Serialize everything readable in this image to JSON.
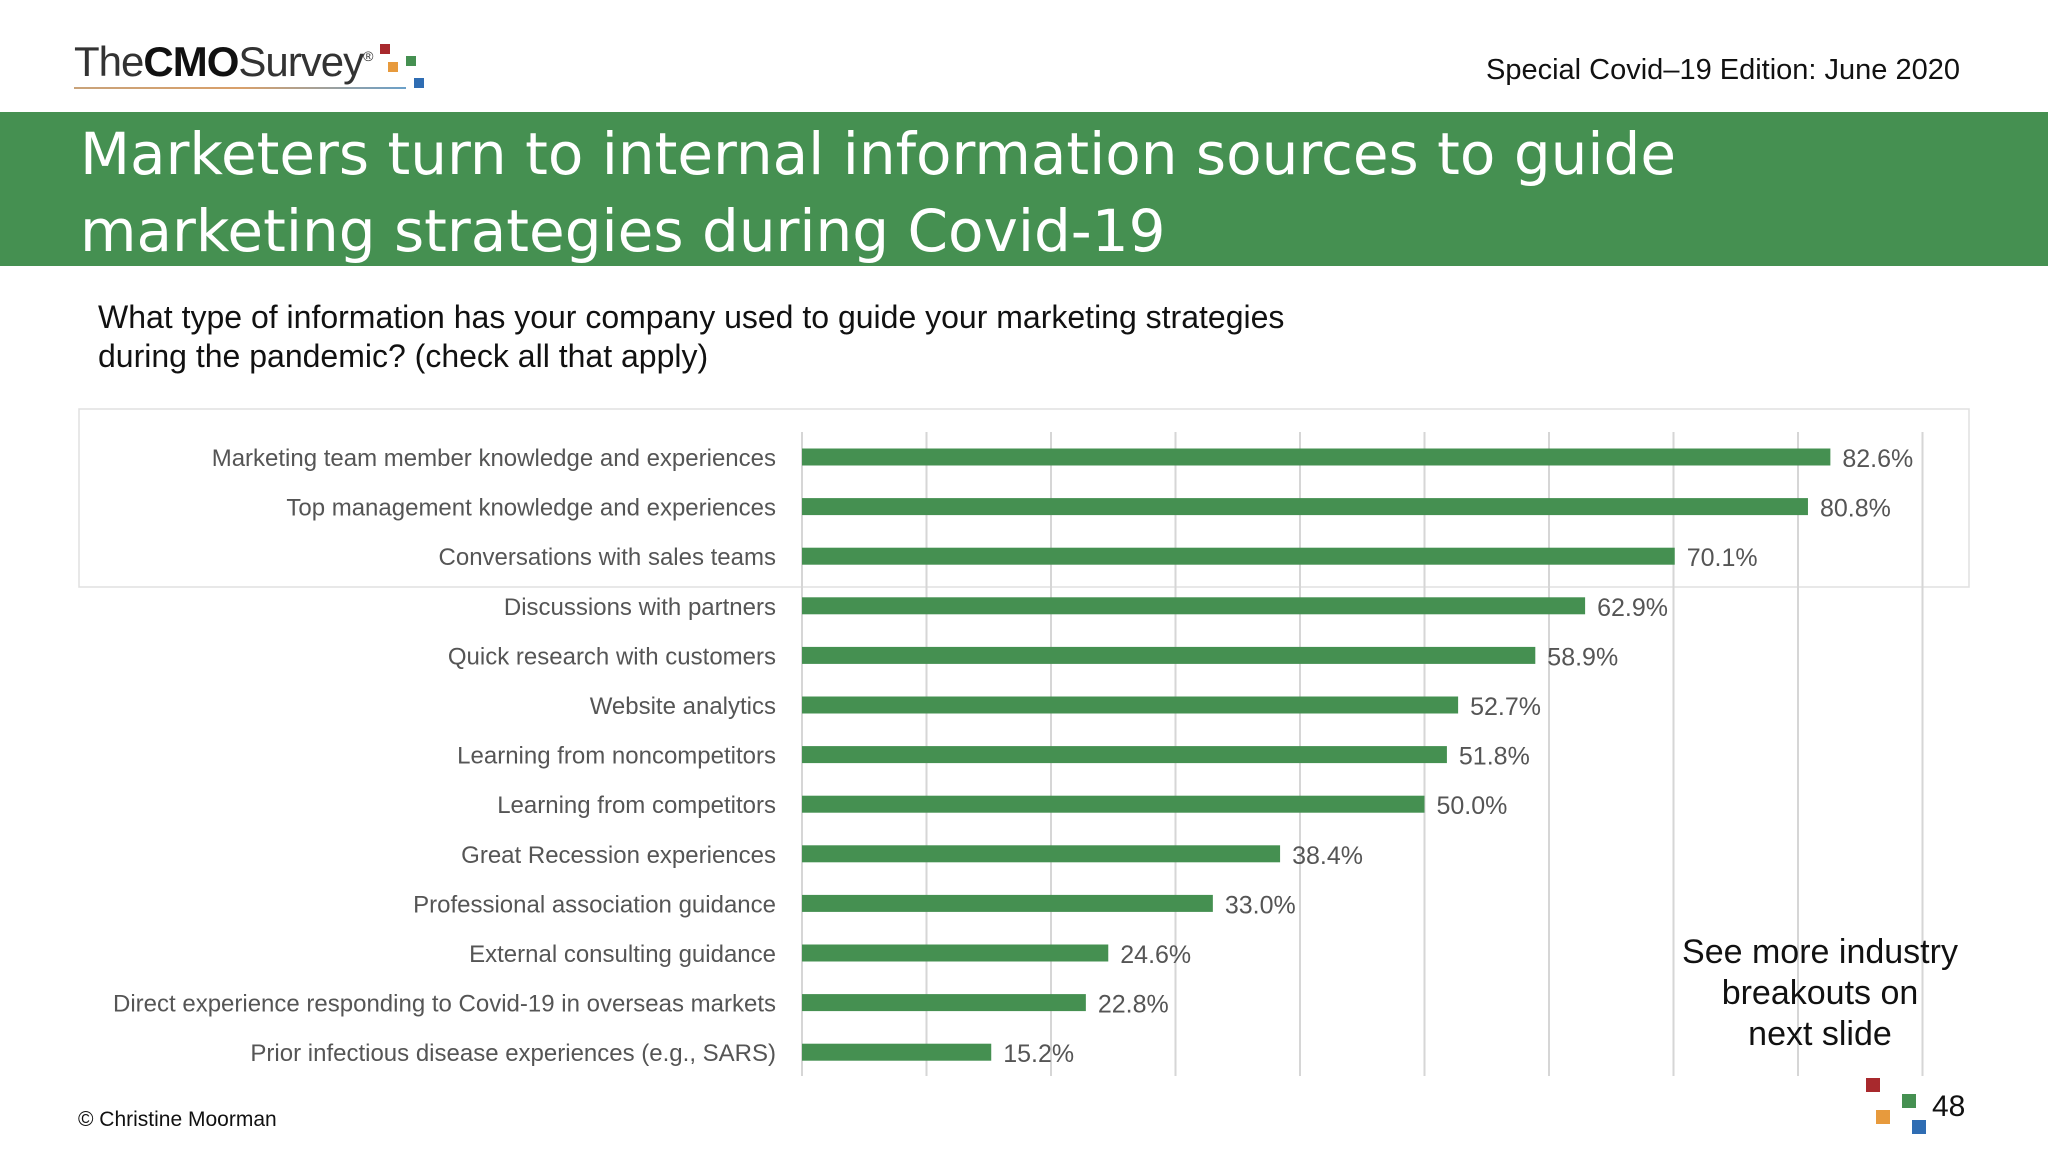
{
  "header": {
    "logo": {
      "the": "The",
      "cmo": "CMO",
      "survey": "Survey",
      "reg": "®"
    },
    "edition": "Special Covid–19 Edition: June 2020"
  },
  "banner": {
    "title_line1": "Marketers turn to internal information sources to guide",
    "title_line2": "marketing strategies during Covid-19"
  },
  "question": {
    "line1": "What type of information has your company used to guide your marketing strategies",
    "line2": "during the pandemic? (check all that apply)"
  },
  "chart_data": {
    "type": "bar",
    "orientation": "horizontal",
    "categories": [
      "Marketing team member knowledge and experiences",
      "Top management knowledge and experiences",
      "Conversations with sales teams",
      "Discussions with partners",
      "Quick research with customers",
      "Website analytics",
      "Learning from noncompetitors",
      "Learning from competitors",
      "Great Recession experiences",
      "Professional association guidance",
      "External consulting guidance",
      "Direct experience responding to Covid-19 in overseas markets",
      "Prior infectious disease experiences (e.g., SARS)"
    ],
    "values": [
      82.6,
      80.8,
      70.1,
      62.9,
      58.9,
      52.7,
      51.8,
      50.0,
      38.4,
      33.0,
      24.6,
      22.8,
      15.2
    ],
    "value_labels": [
      "82.6%",
      "80.8%",
      "70.1%",
      "62.9%",
      "58.9%",
      "52.7%",
      "51.8%",
      "50.0%",
      "38.4%",
      "33.0%",
      "24.6%",
      "22.8%",
      "15.2%"
    ],
    "xlim": [
      0,
      90
    ],
    "grid_step": 10,
    "grid": true,
    "bar_color": "#459051",
    "unit": "%"
  },
  "note": {
    "line1": "See more industry",
    "line2": "breakouts on",
    "line3": "next slide"
  },
  "footer": {
    "copyright": "© Christine Moorman",
    "page_number": "48"
  },
  "colors": {
    "accent_green": "#459051",
    "logo_red": "#a8292d",
    "logo_orange": "#e79a3d",
    "logo_green": "#459051",
    "logo_blue": "#2f6db3"
  }
}
